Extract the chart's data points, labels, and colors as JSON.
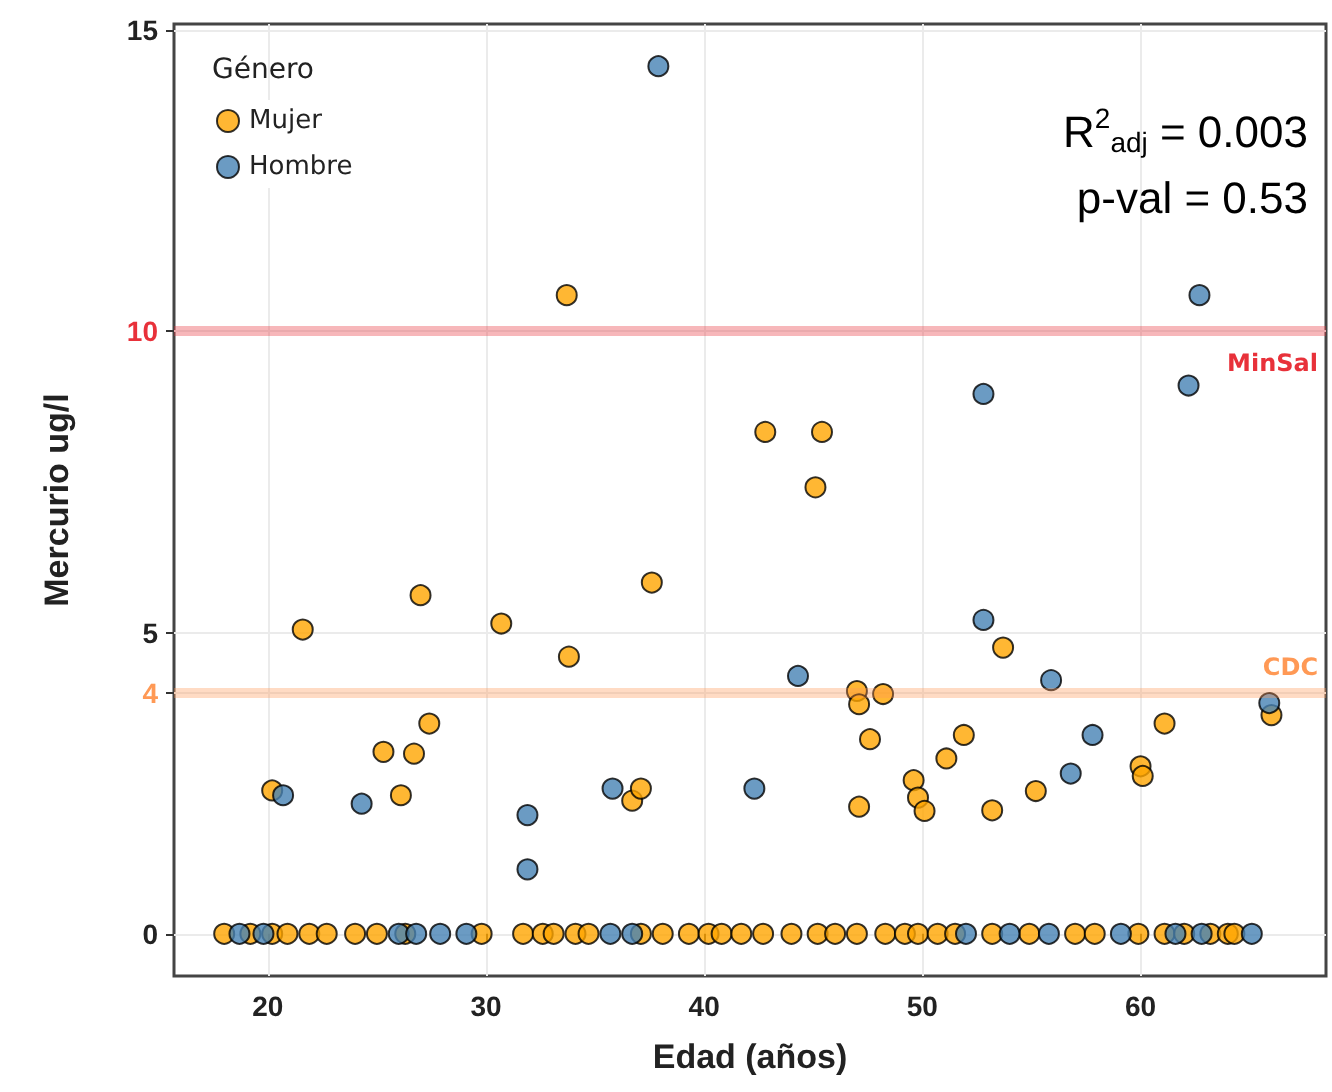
{
  "chart_data": {
    "type": "scatter",
    "xlabel": "Edad (años)",
    "ylabel": "Mercurio ug/l",
    "legend_title": "Género",
    "xlim": [
      15.7,
      68.5
    ],
    "ylim": [
      -0.7,
      15.1
    ],
    "xticks": [
      20,
      30,
      40,
      50,
      60
    ],
    "yticks": [
      0,
      4,
      5,
      10,
      15
    ],
    "grid": true,
    "legend": "top left",
    "marker": "circle",
    "annotations": [
      "R$^{2}$$_{adj}$ = 0.003",
      "p-val = 0.53"
    ],
    "ref_lines": [
      {
        "axis": "y",
        "value": 10,
        "label": "MinSal",
        "color": "#e8313a"
      },
      {
        "axis": "y",
        "value": 4,
        "label": "CDC",
        "color": "#ff9955"
      }
    ],
    "series": [
      {
        "name": "Mujer",
        "color": "#ffa500",
        "x": [
          33.7,
          42.8,
          45.4,
          45.1,
          21.6,
          27.0,
          30.7,
          33.8,
          37.6,
          27.4,
          25.3,
          26.7,
          20.2,
          26.1,
          36.7,
          37.1,
          47.0,
          47.1,
          48.2,
          47.6,
          47.1,
          49.6,
          49.8,
          50.1,
          51.1,
          51.9,
          53.2,
          53.7,
          55.2,
          60.0,
          60.1,
          61.1,
          66.0,
          18.0,
          19.2,
          20.2,
          20.9,
          21.9,
          22.7,
          24.0,
          25.0,
          26.3,
          29.8,
          31.7,
          32.6,
          33.1,
          34.1,
          34.7,
          37.1,
          38.1,
          39.3,
          40.2,
          40.8,
          41.7,
          42.7,
          44.0,
          45.2,
          46.0,
          47.0,
          48.3,
          49.2,
          49.8,
          50.7,
          51.5,
          53.2,
          54.9,
          57.0,
          57.9,
          59.9,
          61.1,
          62.0,
          63.2,
          64.0,
          64.3
        ],
        "values": [
          10.6,
          8.33,
          8.33,
          7.41,
          5.05,
          5.62,
          5.15,
          4.6,
          5.83,
          3.49,
          3.02,
          2.99,
          2.38,
          2.3,
          2.21,
          2.41,
          4.03,
          3.81,
          3.98,
          3.23,
          2.11,
          2.55,
          2.26,
          2.04,
          2.91,
          3.3,
          2.05,
          4.75,
          2.37,
          2.78,
          2.62,
          3.49,
          3.63,
          0,
          0,
          0,
          0,
          0,
          0,
          0,
          0,
          0,
          0,
          0,
          0,
          0,
          0,
          0,
          0,
          0,
          0,
          0,
          0,
          0,
          0,
          0,
          0,
          0,
          0,
          0,
          0,
          0,
          0,
          0,
          0,
          0,
          0,
          0,
          0,
          0,
          0,
          0,
          0,
          0
        ]
      },
      {
        "name": "Hombre",
        "color": "#4682b4",
        "x": [
          37.9,
          62.7,
          62.2,
          52.8,
          20.7,
          24.3,
          31.9,
          31.9,
          35.8,
          42.3,
          44.3,
          52.8,
          55.9,
          56.8,
          57.8,
          65.9,
          18.7,
          19.8,
          26.0,
          26.8,
          27.9,
          29.1,
          35.7,
          36.7,
          52.0,
          54.0,
          55.8,
          59.1,
          61.6,
          62.8,
          65.1
        ],
        "values": [
          14.4,
          10.6,
          9.1,
          8.96,
          2.3,
          2.16,
          1.97,
          1.07,
          2.41,
          2.41,
          4.28,
          5.21,
          4.21,
          2.66,
          3.3,
          3.83,
          0,
          0,
          0,
          0,
          0,
          0,
          0,
          0,
          0,
          0,
          0,
          0,
          0,
          0,
          0
        ]
      }
    ]
  }
}
